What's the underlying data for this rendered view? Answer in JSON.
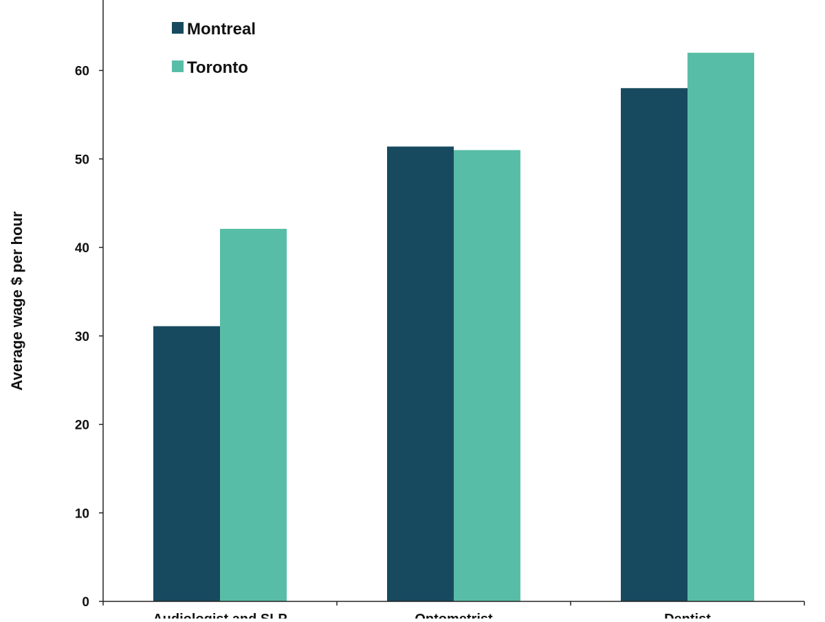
{
  "chart_data": {
    "type": "bar",
    "title": "",
    "xlabel": "",
    "ylabel": "Average wage $ per hour",
    "categories": [
      "Audiologist and SLP",
      "Optometrist",
      "Dentist"
    ],
    "series": [
      {
        "name": "Montreal",
        "values": [
          31.1,
          51.4,
          58.0
        ],
        "color": "#174a5f"
      },
      {
        "name": "Toronto",
        "values": [
          42.1,
          51.0,
          62.0
        ],
        "color": "#58bda6"
      }
    ],
    "ylim": [
      0,
      70
    ],
    "yticks": [
      0,
      10,
      20,
      30,
      40,
      50,
      60
    ],
    "grid": false,
    "legend_position": "top-left"
  }
}
